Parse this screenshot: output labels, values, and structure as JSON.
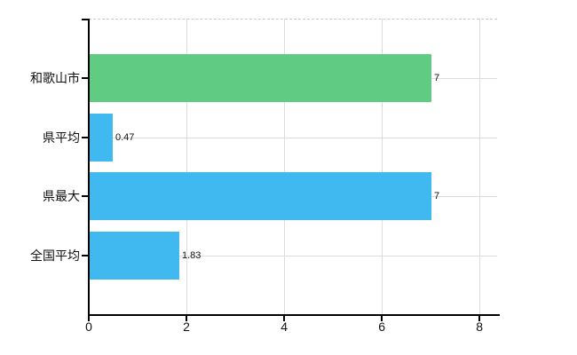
{
  "chart_data": {
    "type": "bar",
    "orientation": "horizontal",
    "title": "",
    "xlabel": "",
    "ylabel": "",
    "categories": [
      "和歌山市",
      "県平均",
      "県最大",
      "全国平均"
    ],
    "values": [
      7,
      0.47,
      7,
      1.83
    ],
    "value_labels": [
      "7",
      "0.47",
      "7",
      "1.83"
    ],
    "bar_colors": [
      "#60cb82",
      "#3fb9f0",
      "#3fb9f0",
      "#3fb9f0"
    ],
    "xlim": [
      0,
      8.36
    ],
    "x_ticks": [
      0,
      2,
      4,
      6,
      8
    ],
    "x_tick_labels": [
      "0",
      "2",
      "4",
      "6",
      "8"
    ],
    "grid": true,
    "legend_position": "none"
  },
  "colors": {
    "background": "#ffffff",
    "axis": "#000000",
    "gridline": "#dcdcdc",
    "top_border_dashed": "#c9c9c9",
    "green_bar": "#60cb82",
    "blue_bar": "#3fb9f0",
    "text": "#111111"
  }
}
